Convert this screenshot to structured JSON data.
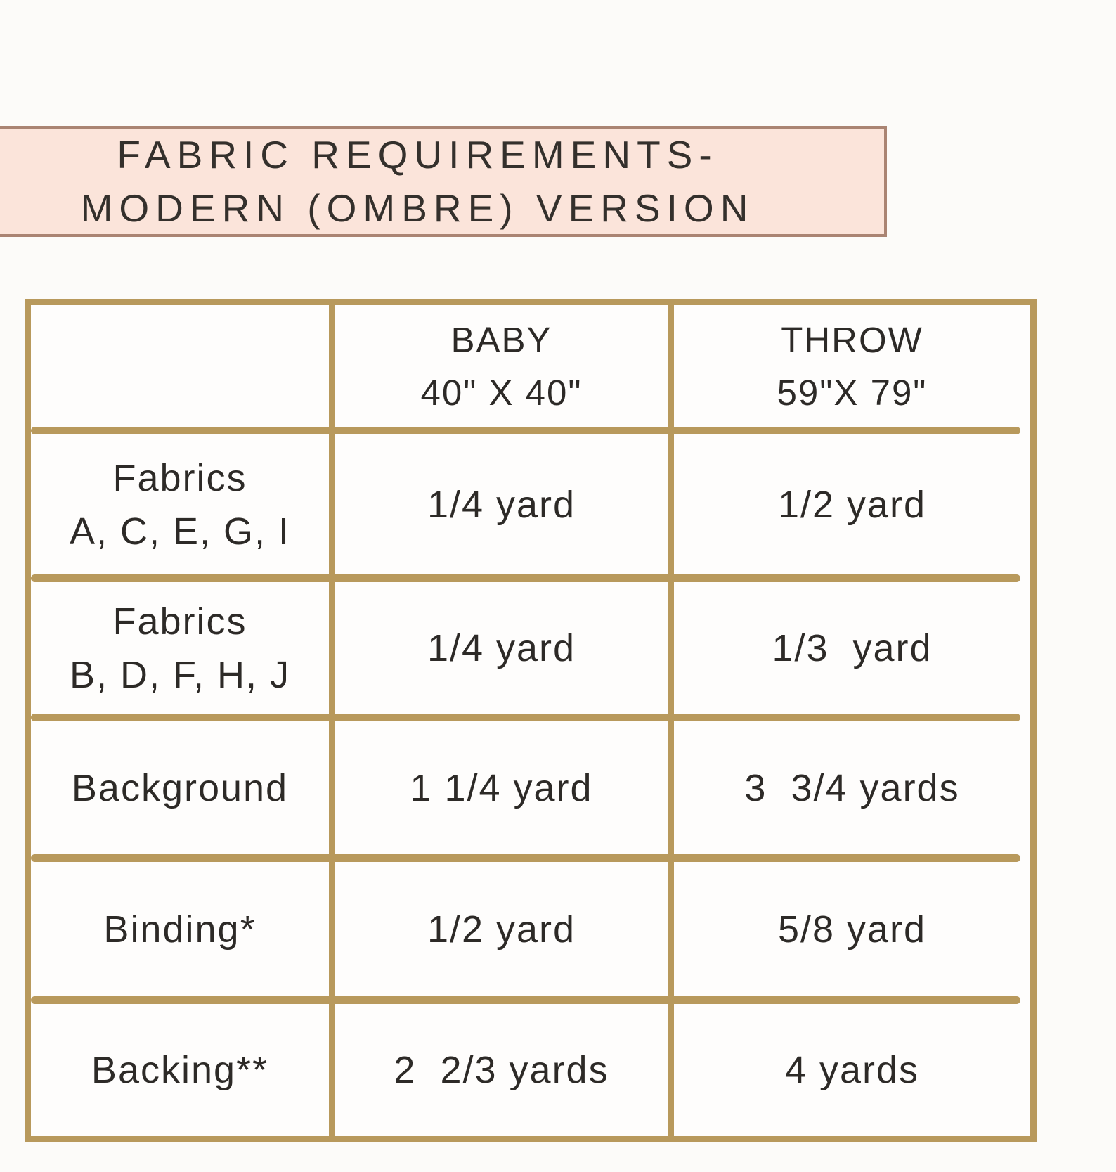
{
  "page": {
    "background_color": "#fcfbf9"
  },
  "banner": {
    "line1": "FABRIC REQUIREMENTS-",
    "line2": "MODERN (OMBRE) VERSION",
    "background_color": "#fbe4da",
    "border_color": "#aa8473"
  },
  "table": {
    "border_color": "#b8995c",
    "header": {
      "col_label_line1": "",
      "col_label_line2": "",
      "baby_line1": "BABY",
      "baby_line2": "40\" X 40\"",
      "throw_line1": "THROW",
      "throw_line2": "59\"X 79\""
    },
    "rows": [
      {
        "label1": "Fabrics",
        "label2": "A, C, E, G, I",
        "baby": "1/4 yard",
        "throw": "1/2 yard"
      },
      {
        "label1": "Fabrics",
        "label2": "B, D, F, H, J",
        "baby": "1/4 yard",
        "throw": "1/3  yard"
      },
      {
        "label1": "Background",
        "baby": "1 1/4 yard",
        "throw": "3  3/4 yards"
      },
      {
        "label1": "Binding*",
        "baby": "1/2 yard",
        "throw": "5/8 yard"
      },
      {
        "label1": "Backing**",
        "baby": "2  2/3 yards",
        "throw": "4 yards"
      }
    ]
  }
}
